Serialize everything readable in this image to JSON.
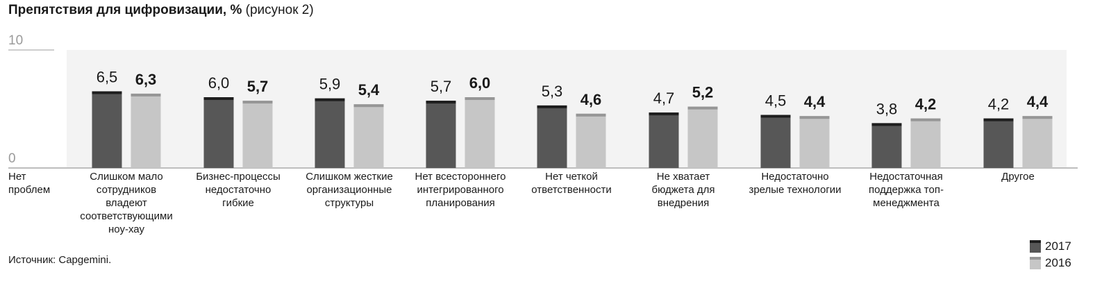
{
  "title": {
    "main": "Препятствия для цифровизации, %",
    "sub": "(рисунок 2)"
  },
  "source": "Источник: Capgemini.",
  "colors": {
    "bar_2017": "#575757",
    "bar_2017_cap": "#1e1e1e",
    "bar_2016": "#c6c6c6",
    "bar_2016_cap": "#969696",
    "panel": "#f3f3f3",
    "axis": "#bdbdbd"
  },
  "chart_data": {
    "type": "bar",
    "ylim": [
      0,
      10
    ],
    "yticks": [
      "0",
      "10"
    ],
    "grid": false,
    "legend_position": "bottom-right",
    "categories": [
      [
        "Нет",
        "проблем"
      ],
      [
        "Слишком мало",
        "сотрудников",
        "владеют",
        "соответствующими",
        "ноу-хау"
      ],
      [
        "Бизнес-процессы",
        "недостаточно",
        "гибкие"
      ],
      [
        "Слишком жесткие",
        "организационные",
        "структуры"
      ],
      [
        "Нет всестороннего",
        "интегрированного",
        "планирования"
      ],
      [
        "Нет четкой",
        "ответственности"
      ],
      [
        "Не хватает",
        "бюджета для",
        "внедрения"
      ],
      [
        "Недостаточно",
        "зрелые технологии"
      ],
      [
        "Недостаточная",
        "поддержка топ-",
        "менеджмента"
      ],
      [
        "Другое"
      ]
    ],
    "series": [
      {
        "name": "2017",
        "values": [
          null,
          6.5,
          6.0,
          5.9,
          5.7,
          5.3,
          4.7,
          4.5,
          3.8,
          4.2
        ],
        "labels": [
          null,
          "6,5",
          "6,0",
          "5,9",
          "5,7",
          "5,3",
          "4,7",
          "4,5",
          "3,8",
          "4,2"
        ]
      },
      {
        "name": "2016",
        "values": [
          null,
          6.3,
          5.7,
          5.4,
          6.0,
          4.6,
          5.2,
          4.4,
          4.2,
          4.4
        ],
        "labels": [
          null,
          "6,3",
          "5,7",
          "5,4",
          "6,0",
          "4,6",
          "5,2",
          "4,4",
          "4,2",
          "4,4"
        ]
      }
    ]
  }
}
